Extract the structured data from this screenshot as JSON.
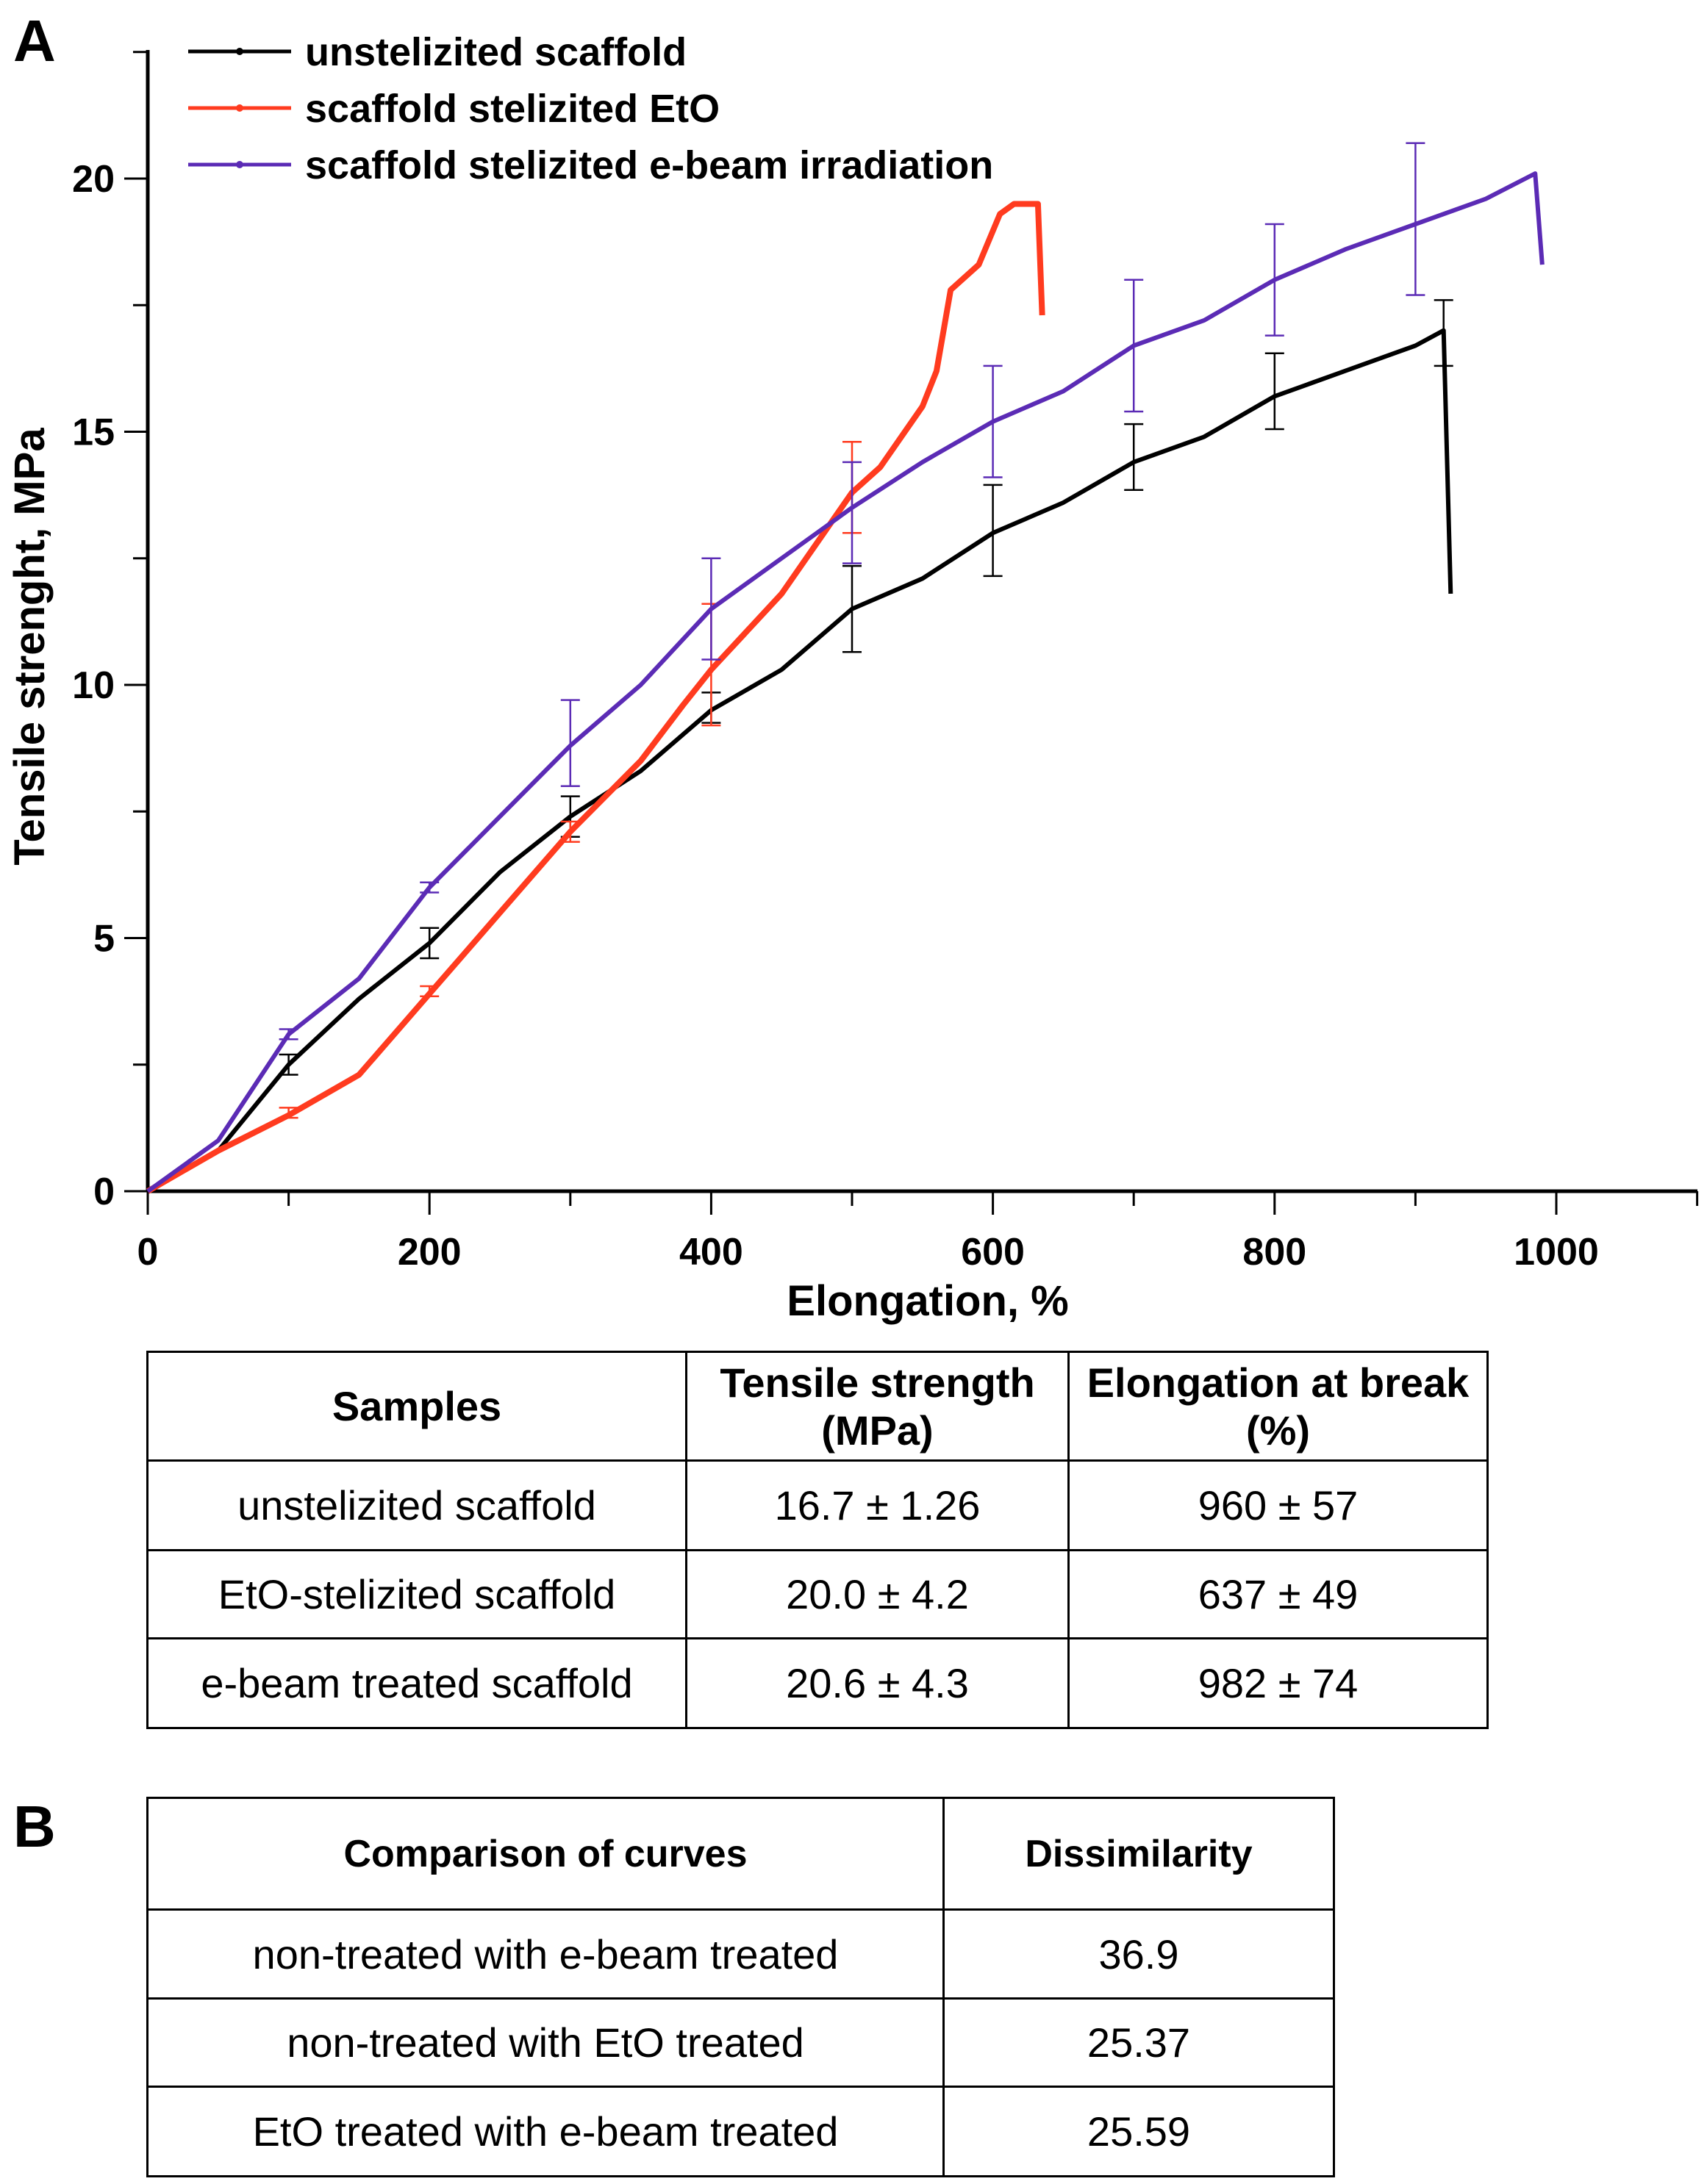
{
  "panel_a": "A",
  "panel_b": "B",
  "chart_data": {
    "type": "line",
    "xlabel": "Elongation, %",
    "ylabel": "Tensile strenght, MPa",
    "xlim": [
      0,
      1100
    ],
    "ylim": [
      0,
      22.5
    ],
    "xticks": [
      "0",
      "200",
      "400",
      "600",
      "800",
      "1000"
    ],
    "yticks": [
      "0",
      "5",
      "10",
      "15",
      "20"
    ],
    "legend_position": "top-left",
    "series": [
      {
        "name": "unstelizited scaffold",
        "color": "#000000",
        "points": [
          [
            0,
            0
          ],
          [
            50,
            0.8
          ],
          [
            100,
            2.5
          ],
          [
            150,
            3.8
          ],
          [
            200,
            4.9
          ],
          [
            250,
            6.3
          ],
          [
            300,
            7.4
          ],
          [
            350,
            8.3
          ],
          [
            400,
            9.5
          ],
          [
            450,
            10.3
          ],
          [
            500,
            11.5
          ],
          [
            550,
            12.1
          ],
          [
            600,
            13.0
          ],
          [
            650,
            13.6
          ],
          [
            700,
            14.4
          ],
          [
            750,
            14.9
          ],
          [
            800,
            15.7
          ],
          [
            850,
            16.2
          ],
          [
            900,
            16.7
          ],
          [
            920,
            17.0
          ],
          [
            925,
            11.8
          ]
        ],
        "errors": [
          [
            100,
            2.5,
            0.2
          ],
          [
            200,
            4.9,
            0.3
          ],
          [
            300,
            7.4,
            0.4
          ],
          [
            400,
            9.55,
            0.3
          ],
          [
            500,
            11.5,
            0.85
          ],
          [
            600,
            13.05,
            0.9
          ],
          [
            700,
            14.5,
            0.65
          ],
          [
            800,
            15.8,
            0.75
          ],
          [
            920,
            16.95,
            0.65
          ]
        ]
      },
      {
        "name": "scaffold stelizited EtO",
        "color": "#ff3b1f",
        "points": [
          [
            0,
            0
          ],
          [
            50,
            0.8
          ],
          [
            100,
            1.5
          ],
          [
            150,
            2.3
          ],
          [
            200,
            3.9
          ],
          [
            250,
            5.5
          ],
          [
            300,
            7.1
          ],
          [
            350,
            8.5
          ],
          [
            380,
            9.6
          ],
          [
            400,
            10.3
          ],
          [
            420,
            10.9
          ],
          [
            450,
            11.8
          ],
          [
            480,
            13.0
          ],
          [
            500,
            13.8
          ],
          [
            520,
            14.3
          ],
          [
            550,
            15.5
          ],
          [
            560,
            16.2
          ],
          [
            570,
            17.8
          ],
          [
            590,
            18.3
          ],
          [
            605,
            19.3
          ],
          [
            615,
            19.5
          ],
          [
            632,
            19.5
          ],
          [
            635,
            17.3
          ]
        ],
        "errors": [
          [
            100,
            1.55,
            0.1
          ],
          [
            200,
            3.95,
            0.1
          ],
          [
            300,
            7.1,
            0.2
          ],
          [
            400,
            10.4,
            1.2
          ],
          [
            500,
            13.9,
            0.9
          ]
        ]
      },
      {
        "name": "scaffold stelizited e-beam irradiation",
        "color": "#5b2bb5",
        "points": [
          [
            0,
            0
          ],
          [
            50,
            1.0
          ],
          [
            100,
            3.1
          ],
          [
            150,
            4.2
          ],
          [
            200,
            6.0
          ],
          [
            250,
            7.4
          ],
          [
            300,
            8.8
          ],
          [
            350,
            10.0
          ],
          [
            400,
            11.5
          ],
          [
            450,
            12.5
          ],
          [
            500,
            13.5
          ],
          [
            550,
            14.4
          ],
          [
            600,
            15.2
          ],
          [
            650,
            15.8
          ],
          [
            700,
            16.7
          ],
          [
            750,
            17.2
          ],
          [
            800,
            18.0
          ],
          [
            850,
            18.6
          ],
          [
            900,
            19.1
          ],
          [
            950,
            19.6
          ],
          [
            985,
            20.1
          ],
          [
            990,
            18.3
          ]
        ],
        "errors": [
          [
            100,
            3.1,
            0.1
          ],
          [
            200,
            6.0,
            0.1
          ],
          [
            300,
            8.85,
            0.85
          ],
          [
            400,
            11.5,
            1.0
          ],
          [
            500,
            13.4,
            1.0
          ],
          [
            600,
            15.2,
            1.1
          ],
          [
            700,
            16.7,
            1.3
          ],
          [
            800,
            18.0,
            1.1
          ],
          [
            900,
            19.2,
            1.5
          ]
        ]
      }
    ]
  },
  "table_a": {
    "headers": [
      "Samples",
      "Tensile strength (MPa)",
      "Elongation at break (%)"
    ],
    "rows": [
      [
        "unstelizited scaffold",
        "16.7 ± 1.26",
        "960 ± 57"
      ],
      [
        "EtO-stelizited scaffold",
        "20.0 ± 4.2",
        "637 ± 49"
      ],
      [
        "e-beam treated scaffold",
        "20.6 ± 4.3",
        "982 ± 74"
      ]
    ]
  },
  "table_b": {
    "headers": [
      "Comparison of curves",
      "Dissimilarity"
    ],
    "rows": [
      [
        "non-treated with e-beam treated",
        "36.9"
      ],
      [
        "non-treated with EtO treated",
        "25.37"
      ],
      [
        "EtO treated with e-beam treated",
        "25.59"
      ]
    ]
  }
}
